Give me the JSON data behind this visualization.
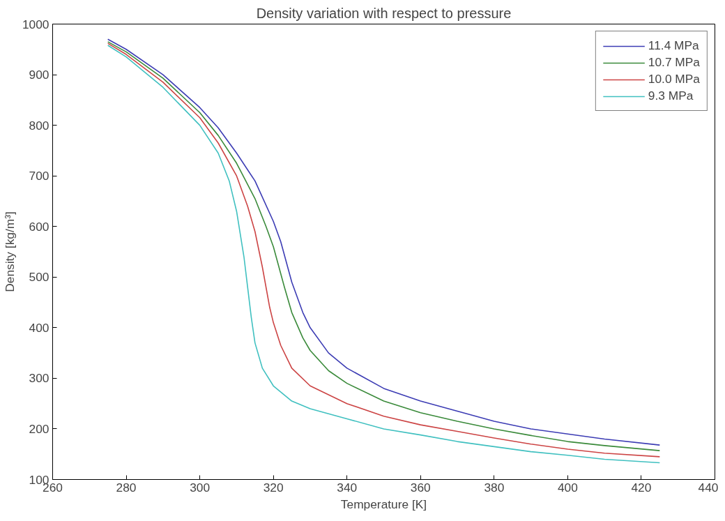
{
  "chart_data": {
    "type": "line",
    "title": "Density variation with respect to pressure",
    "xlabel": "Temperature [K]",
    "ylabel": "Density [kg/m³]",
    "xlim": [
      260,
      440
    ],
    "xticks": [
      260,
      280,
      300,
      320,
      340,
      360,
      380,
      400,
      420,
      440
    ],
    "ylim": [
      100,
      1000
    ],
    "yticks": [
      100,
      200,
      300,
      400,
      500,
      600,
      700,
      800,
      900,
      1000
    ],
    "grid": false,
    "legend": "top right",
    "marker": "none",
    "line_style": "solid",
    "series": [
      {
        "name": "11.4 MPa",
        "color": "#3c3cb4",
        "x": [
          275,
          280,
          290,
          300,
          305,
          310,
          315,
          320,
          322,
          325,
          328,
          330,
          335,
          340,
          350,
          360,
          370,
          380,
          390,
          400,
          410,
          425
        ],
        "values": [
          970,
          950,
          900,
          835,
          795,
          745,
          690,
          610,
          570,
          490,
          430,
          400,
          350,
          320,
          280,
          255,
          235,
          215,
          200,
          190,
          180,
          168
        ]
      },
      {
        "name": "10.7 MPa",
        "color": "#3a8a3a",
        "x": [
          275,
          280,
          290,
          300,
          305,
          310,
          315,
          318,
          320,
          323,
          325,
          328,
          330,
          335,
          340,
          350,
          360,
          370,
          380,
          390,
          400,
          410,
          425
        ],
        "values": [
          965,
          945,
          893,
          825,
          780,
          725,
          655,
          600,
          560,
          480,
          430,
          380,
          355,
          315,
          290,
          255,
          232,
          215,
          200,
          187,
          175,
          167,
          157
        ]
      },
      {
        "name": "10.0 MPa",
        "color": "#cc4444",
        "x": [
          275,
          280,
          290,
          300,
          305,
          310,
          313,
          315,
          317,
          319,
          320,
          322,
          325,
          330,
          340,
          350,
          360,
          370,
          380,
          390,
          400,
          410,
          425
        ],
        "values": [
          962,
          940,
          885,
          815,
          765,
          700,
          640,
          590,
          520,
          440,
          410,
          365,
          320,
          285,
          250,
          225,
          208,
          195,
          182,
          170,
          160,
          152,
          145
        ]
      },
      {
        "name": "9.3 MPa",
        "color": "#40c0c0",
        "x": [
          275,
          280,
          290,
          300,
          305,
          308,
          310,
          312,
          313,
          314,
          315,
          317,
          320,
          325,
          330,
          340,
          350,
          360,
          370,
          380,
          390,
          400,
          410,
          425
        ],
        "values": [
          958,
          935,
          875,
          800,
          745,
          690,
          630,
          540,
          480,
          420,
          370,
          320,
          285,
          255,
          240,
          220,
          200,
          188,
          175,
          165,
          155,
          148,
          140,
          133
        ]
      }
    ]
  }
}
